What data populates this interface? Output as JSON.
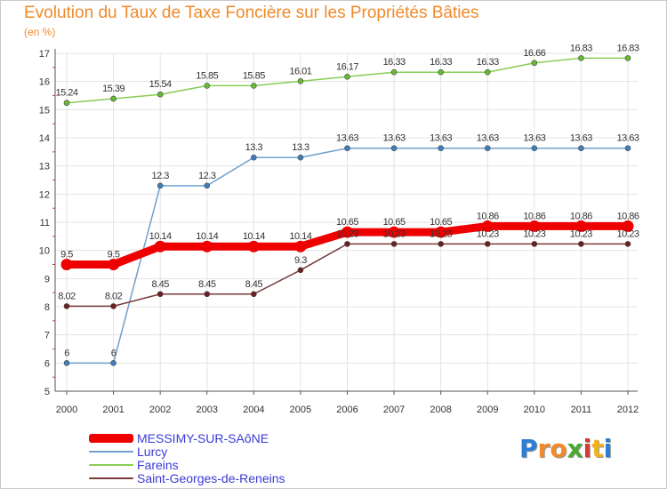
{
  "title": "Evolution du Taux de Taxe Foncière sur les Propriétés Bâties",
  "subtitle": "(en %)",
  "logo": "Proxiti",
  "colors": {
    "title": "#f08a2a",
    "grid": "#e3e3e3",
    "axis": "#555555",
    "accent_ticks": "#e23b3b"
  },
  "chart_data": {
    "type": "line",
    "title": "Evolution du Taux de Taxe Foncière sur les Propriétés Bâties",
    "ylabel": "(en %)",
    "xlabel": "",
    "ylim": [
      5,
      17
    ],
    "yticks": [
      5,
      6,
      7,
      8,
      9,
      10,
      11,
      12,
      13,
      14,
      15,
      16,
      17
    ],
    "categories": [
      "2000",
      "2001",
      "2002",
      "2003",
      "2004",
      "2005",
      "2006",
      "2007",
      "2008",
      "2009",
      "2010",
      "2011",
      "2012"
    ],
    "series": [
      {
        "name": "Fareins",
        "color": "#88cc55",
        "marker": "#66bb33",
        "values": [
          15.24,
          15.39,
          15.54,
          15.85,
          15.85,
          16.01,
          16.17,
          16.33,
          16.33,
          16.33,
          16.66,
          16.83,
          16.83
        ],
        "labels": [
          "15.24",
          "15.39",
          "15.54",
          "15.85",
          "15.85",
          "16.01",
          "16.17",
          "16.33",
          "16.33",
          "16.33",
          "16.66",
          "16.83",
          "16.83"
        ]
      },
      {
        "name": "Lurcy",
        "color": "#6f9fcc",
        "marker": "#3f7fbf",
        "values": [
          6,
          6,
          12.3,
          12.3,
          13.3,
          13.3,
          13.63,
          13.63,
          13.63,
          13.63,
          13.63,
          13.63,
          13.63
        ],
        "labels": [
          "6",
          "6",
          "12.3",
          "12.3",
          "13.3",
          "13.3",
          "13.63",
          "13.63",
          "13.63",
          "13.63",
          "13.63",
          "13.63",
          "13.63"
        ]
      },
      {
        "name": "Saint-Georges-de-Reneins",
        "color": "#7a3a3a",
        "marker": "#6a2020",
        "values": [
          8.02,
          8.02,
          8.45,
          8.45,
          8.45,
          9.3,
          10.23,
          10.23,
          10.23,
          10.23,
          10.23,
          10.23,
          10.23
        ],
        "labels": [
          "8.02",
          "8.02",
          "8.45",
          "8.45",
          "8.45",
          "9.3",
          "10.23",
          "10.23",
          "10.23",
          "10.23",
          "10.23",
          "10.23",
          "10.23"
        ]
      },
      {
        "name": "MESSIMY-SUR-SAôNE",
        "color": "#ee0000",
        "marker": "#ee0000",
        "values": [
          9.5,
          9.5,
          10.14,
          10.14,
          10.14,
          10.14,
          10.65,
          10.65,
          10.65,
          10.86,
          10.86,
          10.86,
          10.86
        ],
        "labels": [
          "9.5",
          "9.5",
          "10.14",
          "10.14",
          "10.14",
          "10.14",
          "10.65",
          "10.65",
          "10.65",
          "10.86",
          "10.86",
          "10.86",
          "10.86"
        ]
      }
    ],
    "legend_order": [
      "MESSIMY-SUR-SAôNE",
      "Lurcy",
      "Fareins",
      "Saint-Georges-de-Reneins"
    ],
    "legend_position": "bottom-left"
  }
}
